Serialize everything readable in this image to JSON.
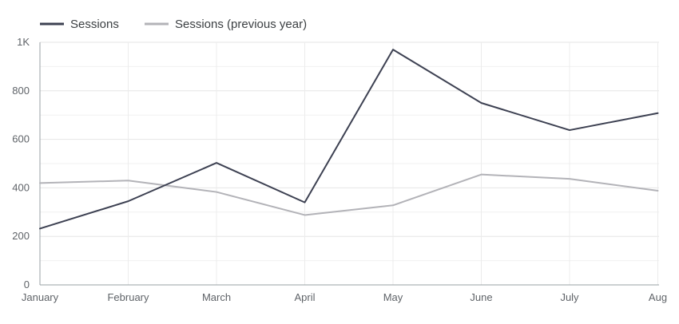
{
  "chart_data": {
    "type": "line",
    "categories": [
      "January",
      "February",
      "March",
      "April",
      "May",
      "June",
      "July",
      "Aug"
    ],
    "series": [
      {
        "name": "Sessions",
        "color": "#3d4152",
        "values": [
          232,
          345,
          503,
          340,
          970,
          750,
          638,
          708
        ]
      },
      {
        "name": "Sessions (previous year)",
        "color": "#b3b3b8",
        "values": [
          420,
          430,
          383,
          288,
          328,
          455,
          437,
          388
        ]
      }
    ],
    "y_ticks": [
      "0",
      "200",
      "400",
      "600",
      "800",
      "1K"
    ],
    "ylim": [
      0,
      1000
    ],
    "grid": true,
    "legend_position": "top-left",
    "title": "",
    "xlabel": "",
    "ylabel": ""
  }
}
